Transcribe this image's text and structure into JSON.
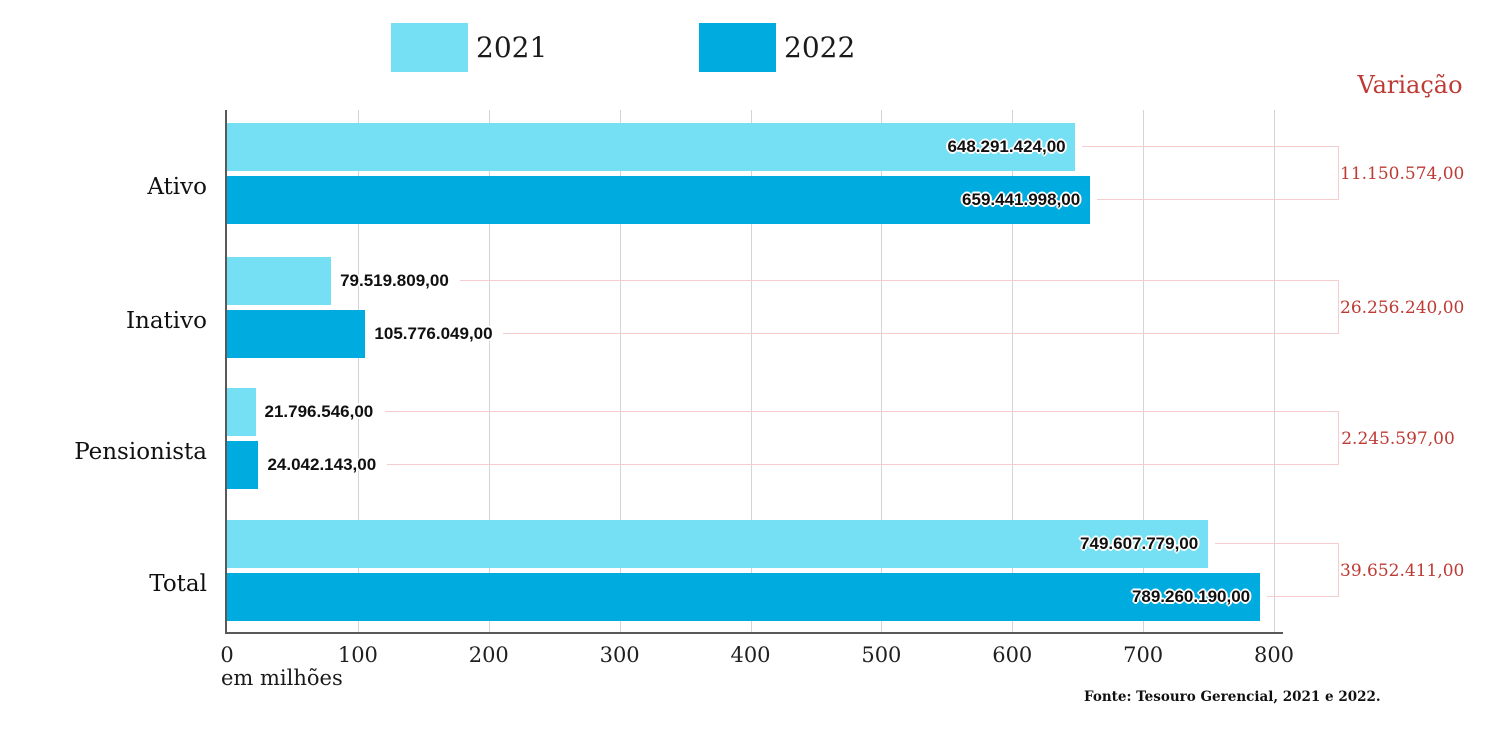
{
  "chart_data": {
    "type": "bar",
    "orientation": "horizontal",
    "unit_note": "values shown in units; axis in millions",
    "categories": [
      "Ativo",
      "Inativo",
      "Pensionista",
      "Total"
    ],
    "series": [
      {
        "name": "2021",
        "color": "#75e0f3",
        "values_millions": [
          648.291424,
          79.519809,
          21.796546,
          749.607779
        ],
        "labels": [
          "648.291.424,00",
          "79.519.809,00",
          "21.796.546,00",
          "749.607.779,00"
        ]
      },
      {
        "name": "2022",
        "color": "#00acdf",
        "values_millions": [
          659.441998,
          105.776049,
          24.042143,
          789.26019
        ],
        "labels": [
          "659.441.998,00",
          "105.776.049,00",
          "24.042.143,00",
          "789.260.190,00"
        ]
      }
    ],
    "variation": {
      "header": "Variação",
      "values": [
        "11.150.574,00",
        "26.256.240,00",
        "2.245.597,00",
        "39.652.411,00"
      ],
      "color": "#be3a34",
      "bracket_color": "#f4cecc"
    },
    "x_axis": {
      "min": 0,
      "max": 800,
      "tick_step": 100,
      "tick_labels": [
        "0",
        "100",
        "200",
        "300",
        "400",
        "500",
        "600",
        "700",
        "800"
      ],
      "label": "em milhões",
      "grid": true,
      "gridline_color": "#d4d4d6",
      "axis_color": "#58595b"
    },
    "legend_position": "top",
    "footer": "Fonte: Tesouro Gerencial, 2021 e 2022."
  }
}
